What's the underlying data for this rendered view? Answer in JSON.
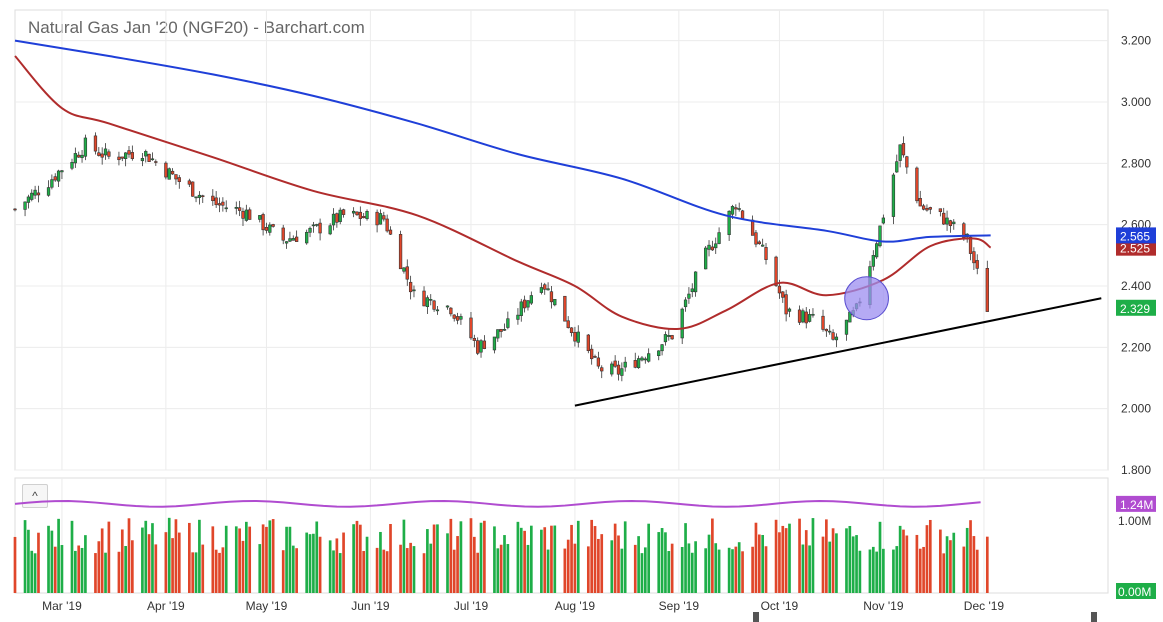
{
  "header": {
    "title": "Natural Gas Jan '20 (NGF20) - Barchart.com"
  },
  "controls": {
    "collapse_icon": "chevron-up-icon",
    "collapse_label": "^"
  },
  "colors": {
    "up": "#1eae48",
    "down": "#e0462a",
    "ma_blue": "#1f3fd8",
    "ma_red": "#b02c2c",
    "volume_ma": "#b04cd0",
    "trendline": "#000000",
    "highlight": "#9c8ef0"
  },
  "chart_data": {
    "type": "candlestick",
    "title": "Natural Gas Jan '20 (NGF20) - Barchart.com",
    "ylim": [
      1.8,
      3.3
    ],
    "y_ticks": [
      "3.200",
      "3.000",
      "2.800",
      "2.600",
      "2.400",
      "2.200",
      "2.000",
      "1.800"
    ],
    "x_ticks": [
      "Mar '19",
      "Apr '19",
      "May '19",
      "Jun '19",
      "Jul '19",
      "Aug '19",
      "Sep '19",
      "Oct '19",
      "Nov '19",
      "Dec '19"
    ],
    "x_tick_dates": [
      "2019-03-01",
      "2019-04-01",
      "2019-05-01",
      "2019-06-01",
      "2019-07-01",
      "2019-08-01",
      "2019-09-01",
      "2019-10-01",
      "2019-11-01",
      "2019-12-01"
    ],
    "x_range": [
      "2019-02-15",
      "2020-01-07"
    ],
    "close_path": [
      [
        "2019-02-15",
        2.65
      ],
      [
        "2019-02-25",
        2.74
      ],
      [
        "2019-03-08",
        2.86
      ],
      [
        "2019-03-15",
        2.82
      ],
      [
        "2019-03-25",
        2.84
      ],
      [
        "2019-04-04",
        2.75
      ],
      [
        "2019-04-15",
        2.67
      ],
      [
        "2019-04-25",
        2.64
      ],
      [
        "2019-05-06",
        2.55
      ],
      [
        "2019-05-15",
        2.58
      ],
      [
        "2019-05-24",
        2.63
      ],
      [
        "2019-06-05",
        2.62
      ],
      [
        "2019-06-14",
        2.37
      ],
      [
        "2019-06-25",
        2.33
      ],
      [
        "2019-07-03",
        2.2
      ],
      [
        "2019-07-12",
        2.27
      ],
      [
        "2019-07-22",
        2.42
      ],
      [
        "2019-07-31",
        2.26
      ],
      [
        "2019-08-08",
        2.13
      ],
      [
        "2019-08-14",
        2.12
      ],
      [
        "2019-08-22",
        2.18
      ],
      [
        "2019-08-30",
        2.24
      ],
      [
        "2019-09-09",
        2.5
      ],
      [
        "2019-09-18",
        2.67
      ],
      [
        "2019-09-27",
        2.49
      ],
      [
        "2019-10-03",
        2.32
      ],
      [
        "2019-10-11",
        2.29
      ],
      [
        "2019-10-17",
        2.22
      ],
      [
        "2019-10-24",
        2.32
      ],
      [
        "2019-10-31",
        2.59
      ],
      [
        "2019-11-06",
        2.85
      ],
      [
        "2019-11-12",
        2.66
      ],
      [
        "2019-11-19",
        2.62
      ],
      [
        "2019-11-26",
        2.55
      ],
      [
        "2019-12-02",
        2.33
      ]
    ],
    "ma_long_path": [
      [
        "2019-02-15",
        3.2
      ],
      [
        "2019-03-15",
        3.15
      ],
      [
        "2019-04-15",
        3.09
      ],
      [
        "2019-05-15",
        3.02
      ],
      [
        "2019-06-15",
        2.93
      ],
      [
        "2019-07-15",
        2.83
      ],
      [
        "2019-08-15",
        2.75
      ],
      [
        "2019-09-15",
        2.63
      ],
      [
        "2019-10-15",
        2.58
      ],
      [
        "2019-11-01",
        2.545
      ],
      [
        "2019-11-15",
        2.56
      ],
      [
        "2019-12-03",
        2.565
      ]
    ],
    "ma_mid_path": [
      [
        "2019-02-15",
        3.15
      ],
      [
        "2019-03-01",
        2.98
      ],
      [
        "2019-03-15",
        2.93
      ],
      [
        "2019-04-15",
        2.82
      ],
      [
        "2019-05-15",
        2.71
      ],
      [
        "2019-06-15",
        2.63
      ],
      [
        "2019-07-15",
        2.48
      ],
      [
        "2019-08-01",
        2.4
      ],
      [
        "2019-08-15",
        2.3
      ],
      [
        "2019-09-01",
        2.26
      ],
      [
        "2019-09-15",
        2.32
      ],
      [
        "2019-10-01",
        2.41
      ],
      [
        "2019-10-15",
        2.37
      ],
      [
        "2019-11-01",
        2.42
      ],
      [
        "2019-11-15",
        2.53
      ],
      [
        "2019-11-28",
        2.555
      ],
      [
        "2019-12-03",
        2.525
      ]
    ],
    "trendline": [
      [
        "2019-08-01",
        2.01
      ],
      [
        "2020-01-05",
        2.36
      ]
    ],
    "highlight_ellipse": {
      "center": [
        "2019-10-27",
        2.36
      ],
      "rx_days": 4.5,
      "ry_price": 0.07
    },
    "last_values": {
      "ma_long": "2.565",
      "ma_mid": "2.525",
      "close": "2.329"
    },
    "volume": {
      "ylim": [
        0,
        1.6
      ],
      "labels": [
        "1.00M",
        "0.00M"
      ],
      "last_label": "1.24M",
      "ma_level": 1.24
    }
  }
}
